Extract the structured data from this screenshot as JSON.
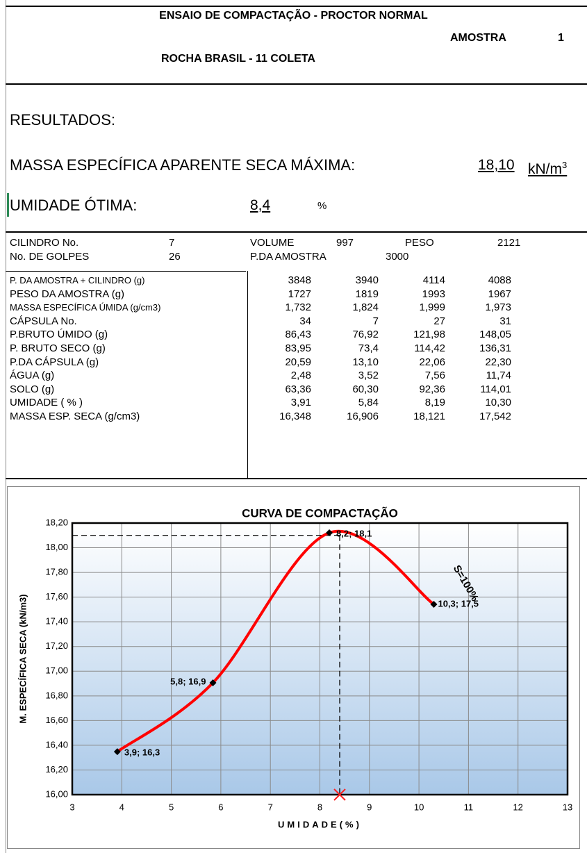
{
  "header": {
    "title": "ENSAIO DE COMPACTAÇÃO - PROCTOR NORMAL",
    "sample_label": "AMOSTRA",
    "sample": "1",
    "subtitle": "ROCHA BRASIL - 11 COLETA"
  },
  "results": {
    "heading": "RESULTADOS:",
    "density_label": "MASSA ESPECÍFICA APARENTE SECA MÁXIMA:",
    "density_value": "18,10",
    "density_unit": "kN/m",
    "density_unit_exp": "3",
    "moisture_label": "UMIDADE ÓTIMA:",
    "moisture_value": "8,4",
    "moisture_unit": "%"
  },
  "info": {
    "rows": [
      [
        "CILINDRO No.",
        "7",
        "VOLUME",
        "997",
        "PESO",
        "2121"
      ],
      [
        "No. DE GOLPES",
        "26",
        "P.DA AMOSTRA",
        "3000"
      ]
    ]
  },
  "table": {
    "rows": [
      [
        "P. DA AMOSTRA + CILINDRO (g)",
        "3848",
        "3940",
        "4114",
        "4088"
      ],
      [
        "PESO DA AMOSTRA (g)",
        "1727",
        "1819",
        "1993",
        "1967"
      ],
      [
        "MASSA ESPECÍFICA ÚMIDA (g/cm3)",
        "1,732",
        "1,824",
        "1,999",
        "1,973"
      ],
      [
        "CÁPSULA No.",
        "34",
        "7",
        "27",
        "31"
      ],
      [
        "P.BRUTO ÚMIDO (g)",
        "86,43",
        "76,92",
        "121,98",
        "148,05"
      ],
      [
        "P. BRUTO SECO (g)",
        "83,95",
        "73,4",
        "114,42",
        "136,31"
      ],
      [
        "P.DA CÁPSULA (g)",
        "20,59",
        "13,10",
        "22,06",
        "22,30"
      ],
      [
        "ÁGUA (g)",
        "2,48",
        "3,52",
        "7,56",
        "11,74"
      ],
      [
        "SOLO (g)",
        "63,36",
        "60,30",
        "92,36",
        "114,01"
      ],
      [
        "UMIDADE ( % )",
        "3,91",
        "5,84",
        "8,19",
        "10,30"
      ],
      [
        "MASSA ESP. SECA (g/cm3)",
        "16,348",
        "16,906",
        "18,121",
        "17,542"
      ]
    ]
  },
  "chart_data": {
    "type": "line",
    "title": "CURVA DE COMPACTAÇÃO",
    "x_label": "UMIDADE(%)",
    "y_label": "M. ESPECÍFICA SECA (kN/m3)",
    "x": [
      3.91,
      5.84,
      8.19,
      10.3
    ],
    "series": [
      {
        "color": "#ff0000",
        "values": [
          16.348,
          16.906,
          18.121,
          17.542
        ],
        "value_labels": [
          "3,9; 16,3",
          "5,8; 16,9",
          "8,2; 18,1",
          "10,3; 17,5"
        ]
      }
    ],
    "optimum": {
      "x": 8.4,
      "y": 18.1
    },
    "annotations": [
      {
        "text": "S=100%"
      }
    ],
    "xlim": [
      3,
      13
    ],
    "xticks": [
      3,
      4,
      5,
      6,
      7,
      8,
      9,
      10,
      11,
      12,
      13
    ],
    "ylim": [
      16,
      18.2
    ],
    "yticks": [
      {
        "value": 16,
        "label": "16,00"
      },
      {
        "value": 16.2,
        "label": "16,20"
      },
      {
        "value": 16.4,
        "label": "16,40"
      },
      {
        "value": 16.6,
        "label": "16,60"
      },
      {
        "value": 16.8,
        "label": "16,80"
      },
      {
        "value": 17,
        "label": "17,00"
      },
      {
        "value": 17.2,
        "label": "17,20"
      },
      {
        "value": 17.4,
        "label": "17,40"
      },
      {
        "value": 17.6,
        "label": "17,60"
      },
      {
        "value": 17.8,
        "label": "17,80"
      },
      {
        "value": 18,
        "label": "18,00"
      },
      {
        "value": 18.2,
        "label": "18,20"
      }
    ],
    "grid": true
  }
}
